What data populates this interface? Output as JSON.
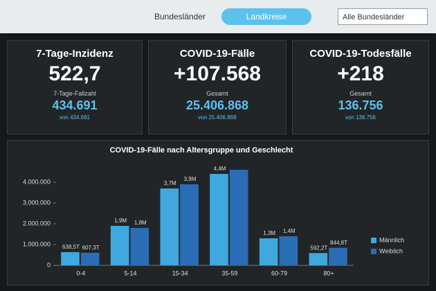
{
  "header": {
    "tabs": [
      "Bundesländer",
      "Landkreise"
    ],
    "dropdown": "Alle Bundesländer"
  },
  "cards": [
    {
      "title": "7-Tage-Inzidenz",
      "value": "522,7",
      "sub_label": "7-Tage-Fallzahl",
      "sub_value": "434.691",
      "sub_note": "von 434.691"
    },
    {
      "title": "COVID-19-Fälle",
      "value": "+107.568",
      "sub_label": "Gesamt",
      "sub_value": "25.406.868",
      "sub_note": "von 25.406.868"
    },
    {
      "title": "COVID-19-Todesfälle",
      "value": "+218",
      "sub_label": "Gesamt",
      "sub_value": "136.756",
      "sub_note": "von 136.756"
    }
  ],
  "chart_data": {
    "type": "bar",
    "title": "COVID-19-Fälle nach Altersgruppe und Geschlecht",
    "categories": [
      "0-4",
      "5-14",
      "15-34",
      "35-59",
      "60-79",
      "80+"
    ],
    "series": [
      {
        "name": "Männlich",
        "color": "#3ea8df",
        "values": [
          638500,
          1900000,
          3700000,
          4400000,
          1300000,
          592200
        ],
        "value_labels": [
          "638,5T",
          "1,9M",
          "3,7M",
          "4,4M",
          "1,3M",
          "592,2T"
        ]
      },
      {
        "name": "Weiblich",
        "color": "#2a6db5",
        "values": [
          607300,
          1800000,
          3900000,
          4600000,
          1400000,
          844800
        ],
        "value_labels": [
          "607,3T",
          "1,8M",
          "3,9M",
          null,
          "1,4M",
          "844,8T"
        ]
      }
    ],
    "ylim": [
      0,
      5000000
    ],
    "yticks": [
      {
        "value": 0,
        "label": "0"
      },
      {
        "value": 1000000,
        "label": "1.000.000"
      },
      {
        "value": 2000000,
        "label": "2.000.000"
      },
      {
        "value": 3000000,
        "label": "3.000.000"
      },
      {
        "value": 4000000,
        "label": "4.000.000"
      }
    ],
    "grid": false,
    "legend": "right"
  }
}
